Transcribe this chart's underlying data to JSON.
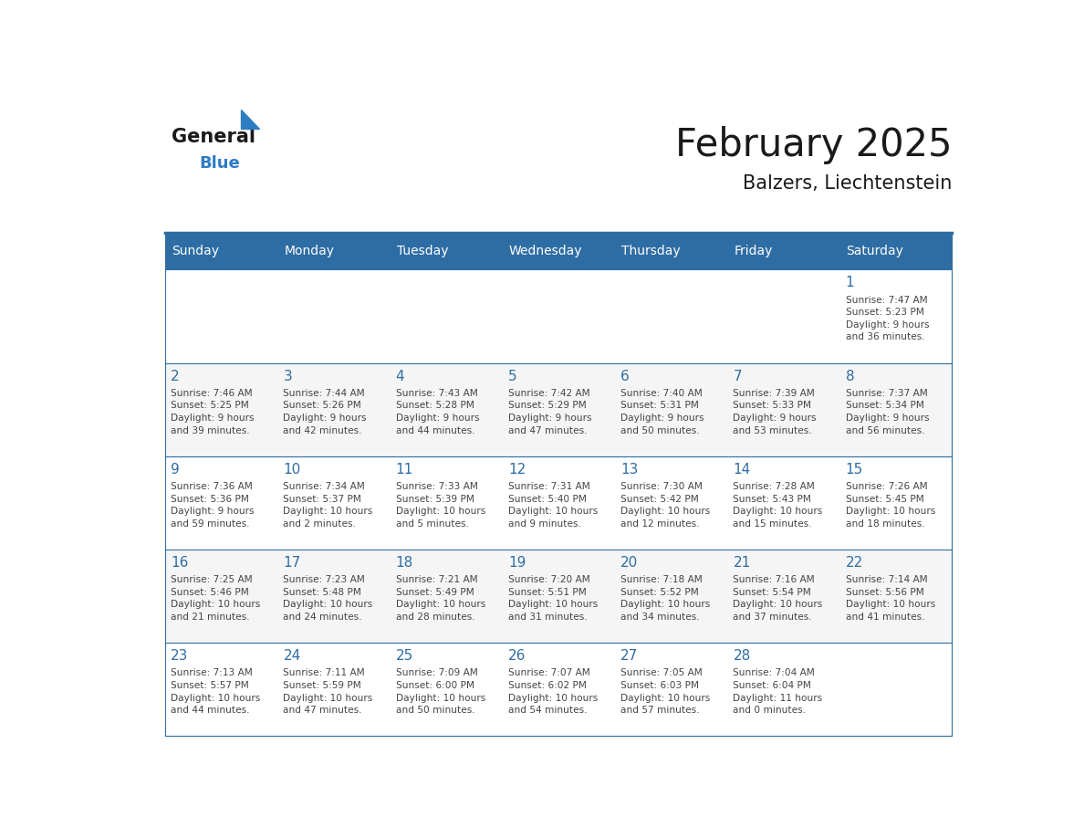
{
  "title": "February 2025",
  "subtitle": "Balzers, Liechtenstein",
  "days_of_week": [
    "Sunday",
    "Monday",
    "Tuesday",
    "Wednesday",
    "Thursday",
    "Friday",
    "Saturday"
  ],
  "header_bg": "#2E6DA4",
  "header_text": "#FFFFFF",
  "cell_bg_odd": "#F5F5F5",
  "cell_bg_even": "#FFFFFF",
  "line_color": "#2E6DA4",
  "day_num_color": "#2E6DA4",
  "text_color": "#444444",
  "title_color": "#1a1a1a",
  "logo_text_color": "#1a1a1a",
  "logo_blue_color": "#2E7DC3",
  "weeks": [
    [
      {
        "day": null,
        "info": null
      },
      {
        "day": null,
        "info": null
      },
      {
        "day": null,
        "info": null
      },
      {
        "day": null,
        "info": null
      },
      {
        "day": null,
        "info": null
      },
      {
        "day": null,
        "info": null
      },
      {
        "day": 1,
        "info": "Sunrise: 7:47 AM\nSunset: 5:23 PM\nDaylight: 9 hours\nand 36 minutes."
      }
    ],
    [
      {
        "day": 2,
        "info": "Sunrise: 7:46 AM\nSunset: 5:25 PM\nDaylight: 9 hours\nand 39 minutes."
      },
      {
        "day": 3,
        "info": "Sunrise: 7:44 AM\nSunset: 5:26 PM\nDaylight: 9 hours\nand 42 minutes."
      },
      {
        "day": 4,
        "info": "Sunrise: 7:43 AM\nSunset: 5:28 PM\nDaylight: 9 hours\nand 44 minutes."
      },
      {
        "day": 5,
        "info": "Sunrise: 7:42 AM\nSunset: 5:29 PM\nDaylight: 9 hours\nand 47 minutes."
      },
      {
        "day": 6,
        "info": "Sunrise: 7:40 AM\nSunset: 5:31 PM\nDaylight: 9 hours\nand 50 minutes."
      },
      {
        "day": 7,
        "info": "Sunrise: 7:39 AM\nSunset: 5:33 PM\nDaylight: 9 hours\nand 53 minutes."
      },
      {
        "day": 8,
        "info": "Sunrise: 7:37 AM\nSunset: 5:34 PM\nDaylight: 9 hours\nand 56 minutes."
      }
    ],
    [
      {
        "day": 9,
        "info": "Sunrise: 7:36 AM\nSunset: 5:36 PM\nDaylight: 9 hours\nand 59 minutes."
      },
      {
        "day": 10,
        "info": "Sunrise: 7:34 AM\nSunset: 5:37 PM\nDaylight: 10 hours\nand 2 minutes."
      },
      {
        "day": 11,
        "info": "Sunrise: 7:33 AM\nSunset: 5:39 PM\nDaylight: 10 hours\nand 5 minutes."
      },
      {
        "day": 12,
        "info": "Sunrise: 7:31 AM\nSunset: 5:40 PM\nDaylight: 10 hours\nand 9 minutes."
      },
      {
        "day": 13,
        "info": "Sunrise: 7:30 AM\nSunset: 5:42 PM\nDaylight: 10 hours\nand 12 minutes."
      },
      {
        "day": 14,
        "info": "Sunrise: 7:28 AM\nSunset: 5:43 PM\nDaylight: 10 hours\nand 15 minutes."
      },
      {
        "day": 15,
        "info": "Sunrise: 7:26 AM\nSunset: 5:45 PM\nDaylight: 10 hours\nand 18 minutes."
      }
    ],
    [
      {
        "day": 16,
        "info": "Sunrise: 7:25 AM\nSunset: 5:46 PM\nDaylight: 10 hours\nand 21 minutes."
      },
      {
        "day": 17,
        "info": "Sunrise: 7:23 AM\nSunset: 5:48 PM\nDaylight: 10 hours\nand 24 minutes."
      },
      {
        "day": 18,
        "info": "Sunrise: 7:21 AM\nSunset: 5:49 PM\nDaylight: 10 hours\nand 28 minutes."
      },
      {
        "day": 19,
        "info": "Sunrise: 7:20 AM\nSunset: 5:51 PM\nDaylight: 10 hours\nand 31 minutes."
      },
      {
        "day": 20,
        "info": "Sunrise: 7:18 AM\nSunset: 5:52 PM\nDaylight: 10 hours\nand 34 minutes."
      },
      {
        "day": 21,
        "info": "Sunrise: 7:16 AM\nSunset: 5:54 PM\nDaylight: 10 hours\nand 37 minutes."
      },
      {
        "day": 22,
        "info": "Sunrise: 7:14 AM\nSunset: 5:56 PM\nDaylight: 10 hours\nand 41 minutes."
      }
    ],
    [
      {
        "day": 23,
        "info": "Sunrise: 7:13 AM\nSunset: 5:57 PM\nDaylight: 10 hours\nand 44 minutes."
      },
      {
        "day": 24,
        "info": "Sunrise: 7:11 AM\nSunset: 5:59 PM\nDaylight: 10 hours\nand 47 minutes."
      },
      {
        "day": 25,
        "info": "Sunrise: 7:09 AM\nSunset: 6:00 PM\nDaylight: 10 hours\nand 50 minutes."
      },
      {
        "day": 26,
        "info": "Sunrise: 7:07 AM\nSunset: 6:02 PM\nDaylight: 10 hours\nand 54 minutes."
      },
      {
        "day": 27,
        "info": "Sunrise: 7:05 AM\nSunset: 6:03 PM\nDaylight: 10 hours\nand 57 minutes."
      },
      {
        "day": 28,
        "info": "Sunrise: 7:04 AM\nSunset: 6:04 PM\nDaylight: 11 hours\nand 0 minutes."
      },
      {
        "day": null,
        "info": null
      }
    ]
  ]
}
